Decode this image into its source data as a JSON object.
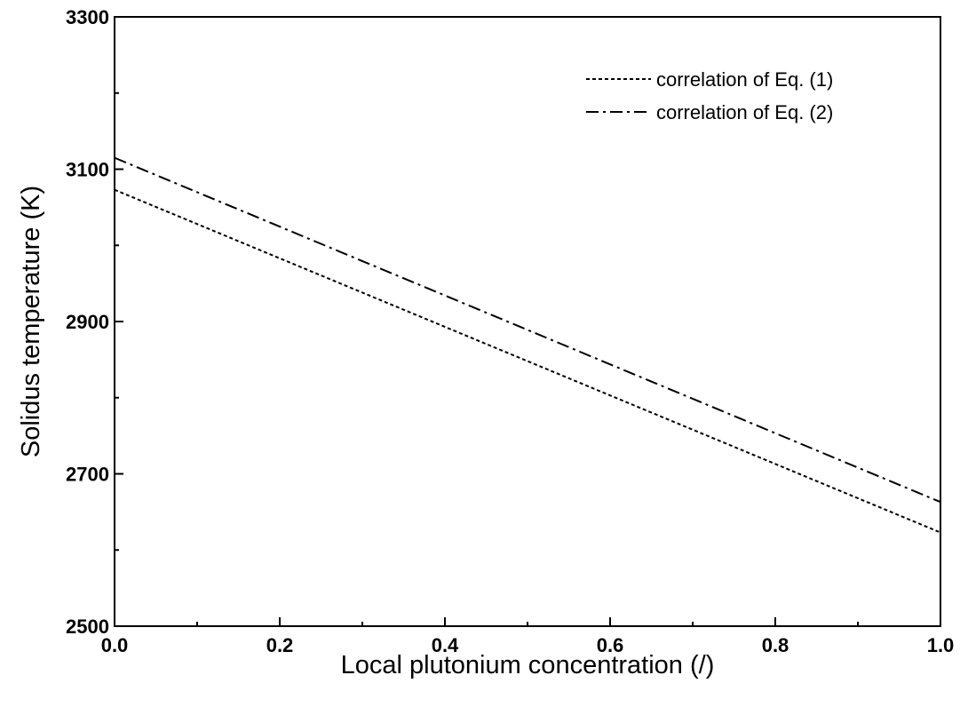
{
  "chart_data": {
    "type": "line",
    "xlabel": "Local plutonium concentration (/)",
    "ylabel": "Solidus temperature (K)",
    "xlim": [
      0.0,
      1.0
    ],
    "ylim": [
      2500,
      3300
    ],
    "x_ticks": [
      "0.0",
      "0.2",
      "0.4",
      "0.6",
      "0.8",
      "1.0"
    ],
    "y_ticks": [
      "2500",
      "2700",
      "2900",
      "3100",
      "3300"
    ],
    "grid": false,
    "legend_position": "top-right",
    "series": [
      {
        "name": "correlation of Eq. (1)",
        "style": "dotted",
        "color": "#000000",
        "x": [
          0.0,
          1.0
        ],
        "y": [
          3073,
          2623
        ]
      },
      {
        "name": "correlation of Eq. (2)",
        "style": "dash-dot",
        "color": "#000000",
        "x": [
          0.0,
          1.0
        ],
        "y": [
          3115,
          2663
        ]
      }
    ]
  }
}
